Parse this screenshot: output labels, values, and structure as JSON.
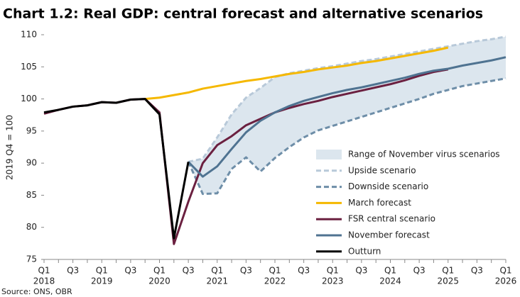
{
  "chart_data": {
    "type": "line",
    "title": "Chart 1.2: Real GDP: central forecast and alternative scenarios",
    "y_label": "2019 Q4 = 100",
    "source": "Source: ONS, OBR",
    "categories": [
      "Q1",
      null,
      "Q3",
      null,
      "Q1",
      null,
      "Q3",
      null,
      "Q1",
      null,
      "Q3",
      null,
      "Q1",
      null,
      "Q3",
      null,
      "Q1",
      null,
      "Q3",
      null,
      "Q1",
      null,
      "Q3",
      null,
      "Q1",
      null,
      "Q3",
      null,
      "Q1",
      null,
      "Q3",
      null,
      "Q1"
    ],
    "years": [
      "2018",
      null,
      null,
      null,
      "2019",
      null,
      null,
      null,
      "2020",
      null,
      null,
      null,
      "2021",
      null,
      null,
      null,
      "2022",
      null,
      null,
      null,
      "2023",
      null,
      null,
      null,
      "2024",
      null,
      null,
      null,
      "2025",
      null,
      null,
      null,
      "2026"
    ],
    "ylim": [
      75,
      110
    ],
    "yticks": [
      75,
      80,
      85,
      90,
      95,
      100,
      105,
      110
    ],
    "band": {
      "name": "Range of November virus scenarios",
      "color": "#dce6ee",
      "between": [
        0,
        1
      ]
    },
    "series": [
      {
        "name": "Upside scenario",
        "color": "#b8c9d9",
        "dash": true,
        "values": [
          null,
          null,
          null,
          null,
          null,
          null,
          null,
          null,
          null,
          null,
          90.2,
          90.7,
          94,
          97.6,
          100.2,
          101.7,
          103.4,
          104.0,
          104.4,
          104.8,
          105.1,
          105.5,
          105.9,
          106.2,
          106.6,
          107.0,
          107.4,
          107.8,
          108.2,
          108.6,
          109.0,
          109.3,
          109.7
        ]
      },
      {
        "name": "Downside scenario",
        "color": "#6e8ea8",
        "dash": true,
        "values": [
          null,
          null,
          null,
          null,
          null,
          null,
          null,
          null,
          null,
          null,
          90.2,
          85.2,
          85.3,
          89.1,
          90.9,
          88.7,
          90.8,
          92.5,
          94.0,
          95.1,
          95.8,
          96.5,
          97.2,
          97.9,
          98.6,
          99.3,
          100.0,
          100.8,
          101.4,
          102.0,
          102.4,
          102.8,
          103.2
        ]
      },
      {
        "name": "March forecast",
        "color": "#f5b800",
        "dash": false,
        "values": [
          null,
          null,
          null,
          null,
          null,
          null,
          null,
          100,
          100.2,
          100.6,
          101.0,
          101.6,
          102.0,
          102.4,
          102.8,
          103.1,
          103.5,
          103.9,
          104.2,
          104.6,
          104.9,
          105.2,
          105.6,
          105.9,
          106.3,
          106.7,
          107.1,
          107.5,
          108.0,
          null,
          null,
          null,
          null
        ]
      },
      {
        "name": "FSR central scenario",
        "color": "#6b2040",
        "dash": false,
        "values": [
          97.7,
          98.3,
          98.8,
          99.0,
          99.5,
          99.4,
          99.9,
          100,
          97.9,
          77.4,
          84,
          90,
          92.8,
          94.2,
          95.9,
          96.9,
          97.9,
          98.6,
          99.2,
          99.7,
          100.3,
          100.8,
          101.3,
          101.8,
          102.3,
          102.9,
          103.6,
          104.2,
          104.6,
          null,
          null,
          null,
          null
        ]
      },
      {
        "name": "November forecast",
        "color": "#4f7391",
        "dash": false,
        "values": [
          null,
          null,
          null,
          null,
          null,
          null,
          null,
          null,
          null,
          null,
          90.2,
          87.9,
          89.5,
          92.2,
          94.8,
          96.6,
          97.9,
          98.9,
          99.7,
          100.3,
          100.9,
          101.4,
          101.8,
          102.3,
          102.8,
          103.3,
          103.9,
          104.4,
          104.7,
          105.2,
          105.6,
          106.0,
          106.5
        ]
      },
      {
        "name": "Outturn",
        "color": "#000000",
        "dash": false,
        "values": [
          97.9,
          98.3,
          98.8,
          99.0,
          99.5,
          99.4,
          99.9,
          100,
          97.6,
          78.3,
          90.2,
          null,
          null,
          null,
          null,
          null,
          null,
          null,
          null,
          null,
          null,
          null,
          null,
          null,
          null,
          null,
          null,
          null,
          null,
          null,
          null,
          null,
          null
        ]
      }
    ]
  }
}
